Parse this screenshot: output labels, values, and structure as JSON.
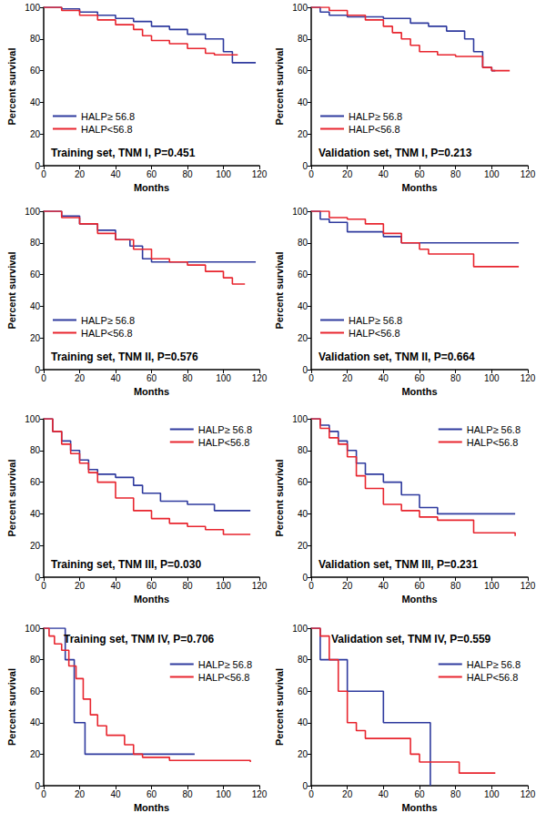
{
  "chart_data": [
    {
      "type": "step",
      "title": "Training set, TNM I, P=0.451",
      "xlabel": "Months",
      "ylabel": "Percent survival",
      "xlim": [
        0,
        120
      ],
      "xticks": [
        0,
        20,
        40,
        60,
        80,
        100,
        120
      ],
      "ylim": [
        0,
        100
      ],
      "yticks": [
        0,
        20,
        40,
        60,
        80,
        100
      ],
      "grid": false,
      "legend": "lower left",
      "series": [
        {
          "name": "HALP≥ 56.8",
          "color": "#2e3a9e",
          "x": [
            0,
            10,
            20,
            30,
            40,
            50,
            60,
            70,
            80,
            90,
            100,
            105,
            118
          ],
          "values": [
            100,
            99,
            97,
            95,
            93,
            91,
            88,
            86,
            83,
            80,
            72,
            65,
            65
          ]
        },
        {
          "name": "HALP<56.8",
          "color": "#e8252e",
          "x": [
            0,
            10,
            20,
            30,
            40,
            50,
            55,
            60,
            70,
            80,
            90,
            95,
            108
          ],
          "values": [
            100,
            98,
            95,
            92,
            89,
            86,
            82,
            79,
            77,
            74,
            71,
            70,
            70
          ]
        }
      ]
    },
    {
      "type": "step",
      "title": "Validation set, TNM I, P=0.213",
      "xlabel": "Months",
      "ylabel": "Percent survival",
      "xlim": [
        0,
        120
      ],
      "xticks": [
        0,
        20,
        40,
        60,
        80,
        100,
        120
      ],
      "ylim": [
        0,
        100
      ],
      "yticks": [
        0,
        20,
        40,
        60,
        80,
        100
      ],
      "grid": false,
      "legend": "lower left",
      "series": [
        {
          "name": "HALP≥ 56.8",
          "color": "#2e3a9e",
          "x": [
            0,
            5,
            10,
            20,
            40,
            55,
            65,
            75,
            85,
            90,
            95,
            100,
            102
          ],
          "values": [
            100,
            97,
            95,
            94,
            93,
            90,
            88,
            85,
            80,
            72,
            62,
            60,
            60
          ]
        },
        {
          "name": "HALP<56.8",
          "color": "#e8252e",
          "x": [
            0,
            10,
            20,
            30,
            40,
            45,
            50,
            55,
            60,
            70,
            80,
            95,
            100,
            110
          ],
          "values": [
            100,
            98,
            95,
            92,
            88,
            84,
            80,
            76,
            72,
            70,
            69,
            62,
            60,
            60
          ]
        }
      ]
    },
    {
      "type": "step",
      "title": "Training set, TNM II, P=0.576",
      "xlabel": "Months",
      "ylabel": "Percent survival",
      "xlim": [
        0,
        120
      ],
      "xticks": [
        0,
        20,
        40,
        60,
        80,
        100,
        120
      ],
      "ylim": [
        0,
        100
      ],
      "yticks": [
        0,
        20,
        40,
        60,
        80,
        100
      ],
      "grid": false,
      "legend": "lower left",
      "series": [
        {
          "name": "HALP≥ 56.8",
          "color": "#2e3a9e",
          "x": [
            0,
            10,
            20,
            30,
            40,
            48,
            55,
            60,
            118
          ],
          "values": [
            100,
            97,
            92,
            88,
            82,
            78,
            70,
            68,
            68
          ]
        },
        {
          "name": "HALP<56.8",
          "color": "#e8252e",
          "x": [
            0,
            10,
            20,
            30,
            40,
            50,
            60,
            70,
            80,
            90,
            100,
            105,
            112
          ],
          "values": [
            100,
            96,
            92,
            86,
            82,
            76,
            70,
            68,
            66,
            62,
            58,
            54,
            54
          ]
        }
      ]
    },
    {
      "type": "step",
      "title": "Validation set, TNM II, P=0.664",
      "xlabel": "Months",
      "ylabel": "Percent survival",
      "xlim": [
        0,
        120
      ],
      "xticks": [
        0,
        20,
        40,
        60,
        80,
        100,
        120
      ],
      "ylim": [
        0,
        100
      ],
      "yticks": [
        0,
        20,
        40,
        60,
        80,
        100
      ],
      "grid": false,
      "legend": "lower left",
      "series": [
        {
          "name": "HALP≥ 56.8",
          "color": "#2e3a9e",
          "x": [
            0,
            5,
            10,
            20,
            40,
            50,
            115
          ],
          "values": [
            100,
            95,
            93,
            87,
            84,
            80,
            80
          ]
        },
        {
          "name": "HALP<56.8",
          "color": "#e8252e",
          "x": [
            0,
            10,
            20,
            30,
            40,
            50,
            60,
            65,
            90,
            115
          ],
          "values": [
            100,
            96,
            95,
            92,
            86,
            80,
            76,
            73,
            65,
            65
          ]
        }
      ]
    },
    {
      "type": "step",
      "title": "Training set, TNM III, P=0.030",
      "xlabel": "Months",
      "ylabel": "Percent survival",
      "xlim": [
        0,
        120
      ],
      "xticks": [
        0,
        20,
        40,
        60,
        80,
        100,
        120
      ],
      "ylim": [
        0,
        100
      ],
      "yticks": [
        0,
        20,
        40,
        60,
        80,
        100
      ],
      "grid": false,
      "legend": "upper right",
      "series": [
        {
          "name": "HALP≥ 56.8",
          "color": "#2e3a9e",
          "x": [
            0,
            5,
            10,
            15,
            20,
            25,
            30,
            40,
            50,
            55,
            65,
            80,
            95,
            115
          ],
          "values": [
            100,
            92,
            86,
            80,
            74,
            68,
            65,
            63,
            58,
            53,
            48,
            46,
            42,
            42
          ]
        },
        {
          "name": "HALP<56.8",
          "color": "#e8252e",
          "x": [
            0,
            5,
            10,
            15,
            20,
            25,
            30,
            40,
            50,
            60,
            70,
            80,
            90,
            100,
            115
          ],
          "values": [
            100,
            92,
            84,
            78,
            72,
            66,
            60,
            50,
            42,
            37,
            34,
            32,
            30,
            27,
            27
          ]
        }
      ]
    },
    {
      "type": "step",
      "title": "Validation set, TNM III, P=0.231",
      "xlabel": "Months",
      "ylabel": "Percent survival",
      "xlim": [
        0,
        120
      ],
      "xticks": [
        0,
        20,
        40,
        60,
        80,
        100,
        120
      ],
      "ylim": [
        0,
        100
      ],
      "yticks": [
        0,
        20,
        40,
        60,
        80,
        100
      ],
      "grid": false,
      "legend": "upper right",
      "series": [
        {
          "name": "HALP≥ 56.8",
          "color": "#2e3a9e",
          "x": [
            0,
            5,
            10,
            15,
            20,
            25,
            30,
            40,
            50,
            60,
            70,
            113
          ],
          "values": [
            100,
            96,
            92,
            86,
            80,
            72,
            65,
            60,
            52,
            44,
            40,
            40
          ]
        },
        {
          "name": "HALP<56.8",
          "color": "#e8252e",
          "x": [
            0,
            5,
            10,
            15,
            20,
            25,
            30,
            40,
            50,
            60,
            70,
            90,
            113
          ],
          "values": [
            100,
            94,
            88,
            84,
            76,
            64,
            56,
            46,
            42,
            38,
            36,
            28,
            26
          ]
        }
      ]
    },
    {
      "type": "step",
      "title": "Training set, TNM IV, P=0.706",
      "xlabel": "Months",
      "ylabel": "Percent survival",
      "xlim": [
        0,
        120
      ],
      "xticks": [
        0,
        20,
        40,
        60,
        80,
        100,
        120
      ],
      "ylim": [
        0,
        100
      ],
      "yticks": [
        0,
        20,
        40,
        60,
        80,
        100
      ],
      "grid": false,
      "legend": "upper right",
      "series": [
        {
          "name": "HALP≥ 56.8",
          "color": "#2e3a9e",
          "x": [
            0,
            12,
            17,
            23,
            84
          ],
          "values": [
            100,
            80,
            40,
            20,
            20
          ]
        },
        {
          "name": "HALP<56.8",
          "color": "#e8252e",
          "x": [
            0,
            3,
            6,
            10,
            14,
            18,
            22,
            26,
            30,
            35,
            45,
            50,
            55,
            70,
            115
          ],
          "values": [
            100,
            95,
            90,
            86,
            76,
            68,
            55,
            45,
            38,
            32,
            26,
            20,
            18,
            16,
            15
          ]
        }
      ]
    },
    {
      "type": "step",
      "title": "Validation set, TNM IV, P=0.559",
      "xlabel": "Months",
      "ylabel": "Percent survival",
      "xlim": [
        0,
        120
      ],
      "xticks": [
        0,
        20,
        40,
        60,
        80,
        100,
        120
      ],
      "ylim": [
        0,
        100
      ],
      "yticks": [
        0,
        20,
        40,
        60,
        80,
        100
      ],
      "grid": false,
      "legend": "upper right",
      "series": [
        {
          "name": "HALP≥ 56.8",
          "color": "#2e3a9e",
          "x": [
            0,
            5,
            20,
            40,
            66
          ],
          "values": [
            100,
            80,
            60,
            40,
            0
          ]
        },
        {
          "name": "HALP<56.8",
          "color": "#e8252e",
          "x": [
            0,
            5,
            10,
            15,
            20,
            25,
            30,
            55,
            60,
            82,
            102
          ],
          "values": [
            100,
            95,
            80,
            60,
            40,
            35,
            30,
            20,
            15,
            8,
            8
          ]
        }
      ]
    }
  ]
}
